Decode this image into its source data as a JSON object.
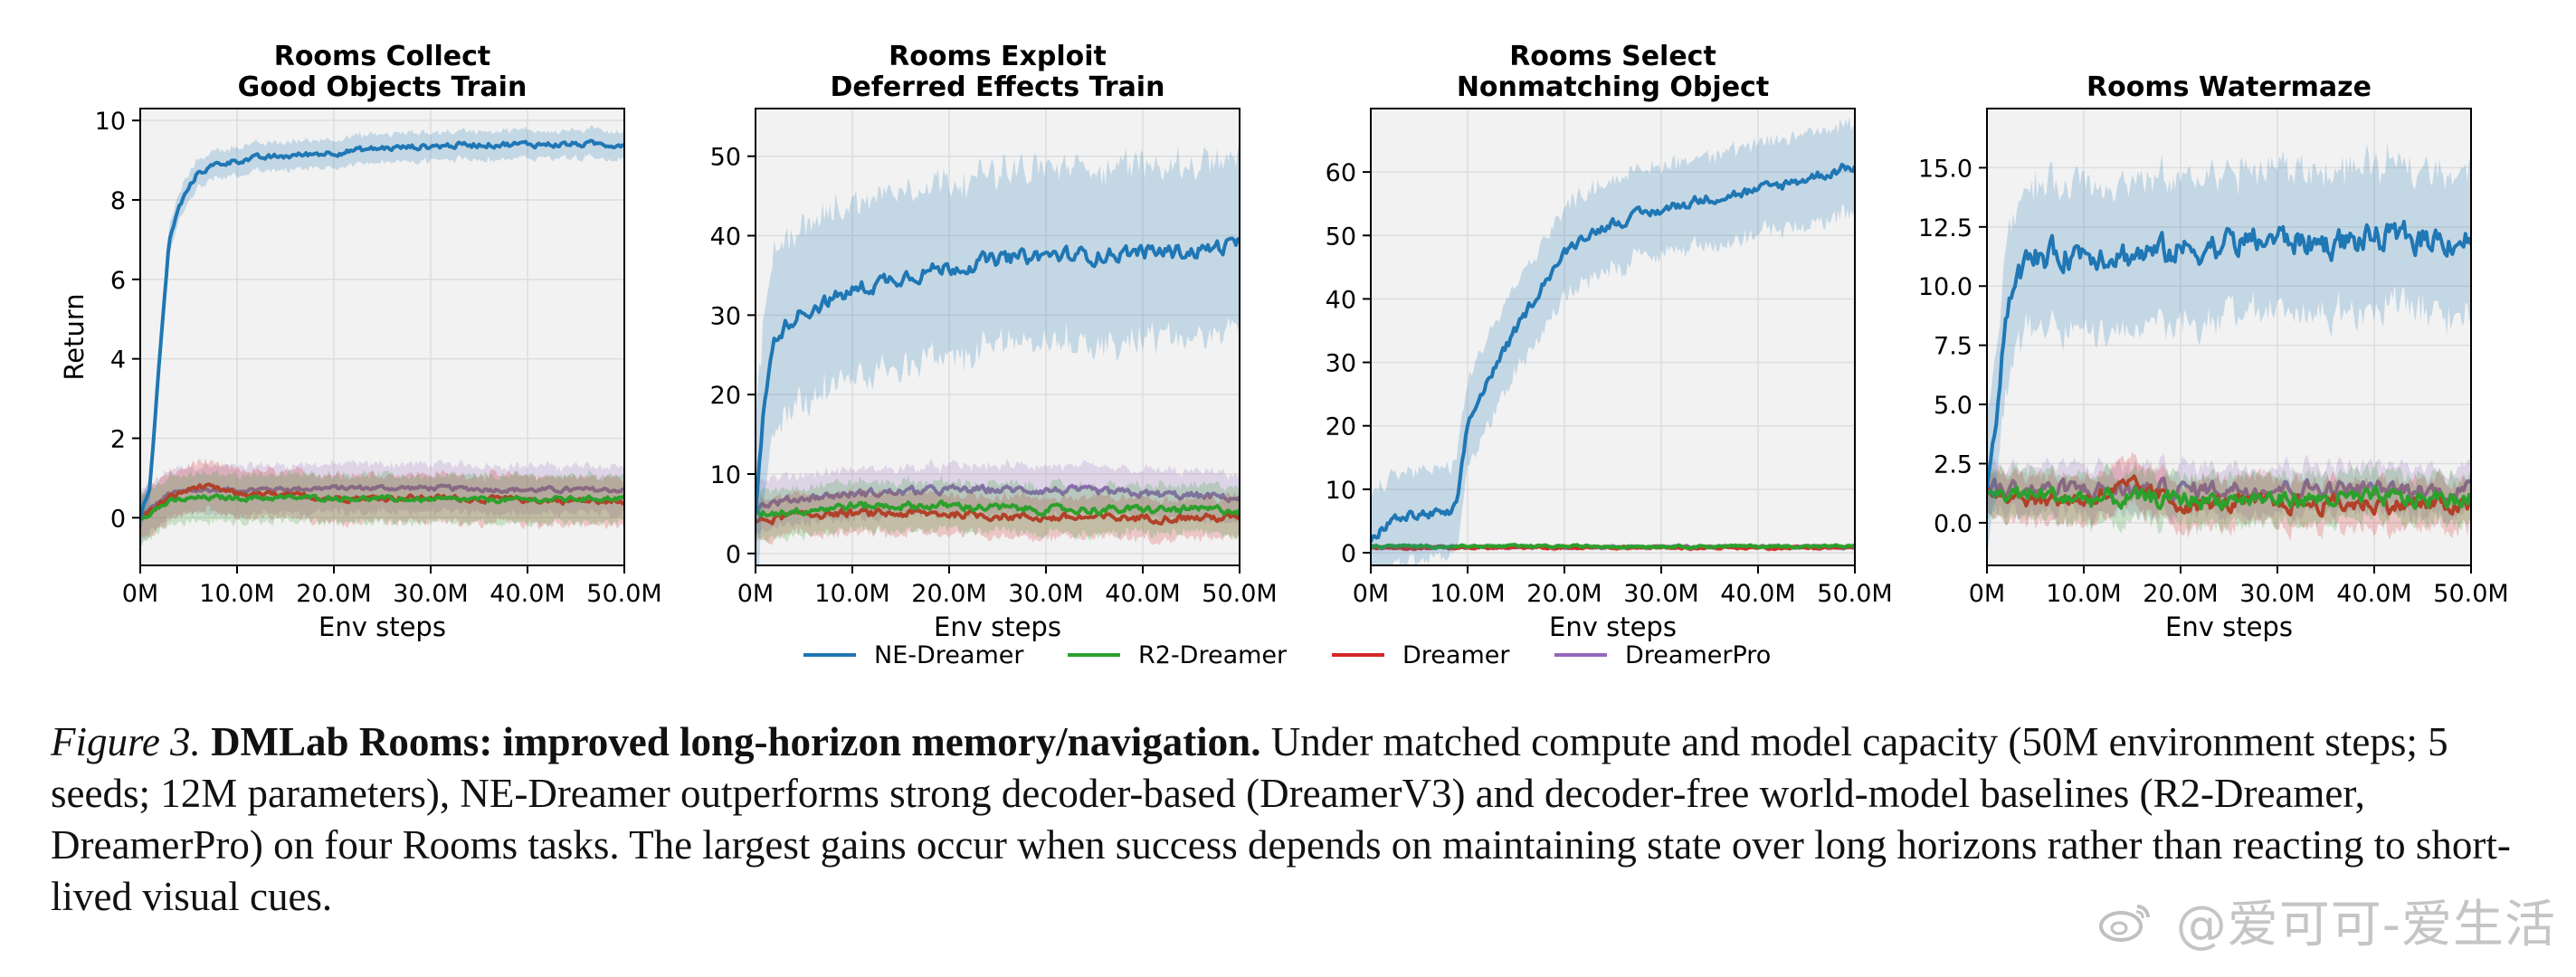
{
  "colors": {
    "NE-Dreamer": "#1f77b4",
    "R2-Dreamer": "#2ca02c",
    "Dreamer": "#d62728",
    "DreamerPro": "#9467bd",
    "panel_bg": "#f2f2f2",
    "grid": "#dddddd"
  },
  "legend": [
    {
      "name": "NE-Dreamer"
    },
    {
      "name": "R2-Dreamer"
    },
    {
      "name": "Dreamer"
    },
    {
      "name": "DreamerPro"
    }
  ],
  "chart_data": [
    {
      "type": "line",
      "title_lines": [
        "Rooms Collect",
        "Good Objects Train"
      ],
      "xlabel": "Env steps",
      "ylabel": "Return",
      "xlim": [
        0,
        50
      ],
      "ylim": [
        -1.2,
        10.3
      ],
      "xticks": [
        0,
        10,
        20,
        30,
        40,
        50
      ],
      "xtick_labels": [
        "0M",
        "10.0M",
        "20.0M",
        "30.0M",
        "40.0M",
        "50.0M"
      ],
      "yticks": [
        0,
        2,
        4,
        6,
        8,
        10
      ],
      "ytick_labels": [
        "0",
        "2",
        "4",
        "6",
        "8",
        "10"
      ],
      "series": [
        {
          "name": "NE-Dreamer",
          "x": [
            0,
            1,
            2,
            3,
            4,
            5,
            6,
            8,
            10,
            15,
            20,
            25,
            30,
            35,
            40,
            45,
            50
          ],
          "y": [
            0,
            0.8,
            4.0,
            7.0,
            7.8,
            8.3,
            8.7,
            8.9,
            9.0,
            9.1,
            9.2,
            9.3,
            9.35,
            9.4,
            9.4,
            9.4,
            9.4
          ],
          "band": 0.35,
          "noise": 0.06
        },
        {
          "name": "R2-Dreamer",
          "x": [
            0,
            3,
            6,
            10,
            20,
            30,
            40,
            50
          ],
          "y": [
            0,
            0.4,
            0.5,
            0.5,
            0.5,
            0.45,
            0.45,
            0.5
          ],
          "band": 0.6,
          "noise": 0.05
        },
        {
          "name": "Dreamer",
          "x": [
            0,
            3,
            6,
            10,
            20,
            30,
            40,
            50
          ],
          "y": [
            0,
            0.5,
            0.8,
            0.6,
            0.5,
            0.5,
            0.45,
            0.4
          ],
          "band": 0.6,
          "noise": 0.06
        },
        {
          "name": "DreamerPro",
          "x": [
            0,
            3,
            6,
            10,
            20,
            30,
            40,
            50
          ],
          "y": [
            0,
            0.6,
            0.7,
            0.7,
            0.75,
            0.75,
            0.7,
            0.7
          ],
          "band": 0.6,
          "noise": 0.05
        }
      ]
    },
    {
      "type": "line",
      "title_lines": [
        "Rooms Exploit",
        "Deferred Effects Train"
      ],
      "xlabel": "Env steps",
      "ylabel": "",
      "xlim": [
        0,
        50
      ],
      "ylim": [
        -1.5,
        56
      ],
      "xticks": [
        0,
        10,
        20,
        30,
        40,
        50
      ],
      "xtick_labels": [
        "0M",
        "10.0M",
        "20.0M",
        "30.0M",
        "40.0M",
        "50.0M"
      ],
      "yticks": [
        0,
        10,
        20,
        30,
        40,
        50
      ],
      "ytick_labels": [
        "0",
        "10",
        "20",
        "30",
        "40",
        "50"
      ],
      "series": [
        {
          "name": "NE-Dreamer",
          "x": [
            0,
            1,
            2,
            4,
            6,
            10,
            15,
            20,
            25,
            30,
            35,
            40,
            45,
            50
          ],
          "y": [
            5,
            20,
            27,
            30,
            31,
            33,
            35,
            36,
            37,
            37.5,
            37.5,
            38,
            38,
            39
          ],
          "band": 11,
          "noise": 0.8
        },
        {
          "name": "R2-Dreamer",
          "x": [
            0,
            5,
            10,
            20,
            30,
            40,
            50
          ],
          "y": [
            5,
            5.5,
            6,
            6,
            5.5,
            5.5,
            5.5
          ],
          "band": 3,
          "noise": 0.4
        },
        {
          "name": "Dreamer",
          "x": [
            0,
            5,
            10,
            20,
            30,
            40,
            50
          ],
          "y": [
            4,
            5,
            5,
            5,
            4.5,
            4.5,
            4.5
          ],
          "band": 2.5,
          "noise": 0.4
        },
        {
          "name": "DreamerPro",
          "x": [
            0,
            5,
            10,
            20,
            30,
            40,
            50
          ],
          "y": [
            6,
            7,
            7.5,
            8,
            8,
            7.5,
            7
          ],
          "band": 3,
          "noise": 0.4
        }
      ]
    },
    {
      "type": "line",
      "title_lines": [
        "Rooms Select",
        "Nonmatching Object"
      ],
      "xlabel": "Env steps",
      "ylabel": "",
      "xlim": [
        0,
        50
      ],
      "ylim": [
        -2,
        70
      ],
      "xticks": [
        0,
        10,
        20,
        30,
        40,
        50
      ],
      "xtick_labels": [
        "0M",
        "10.0M",
        "20.0M",
        "30.0M",
        "40.0M",
        "50.0M"
      ],
      "yticks": [
        0,
        10,
        20,
        30,
        40,
        50,
        60
      ],
      "ytick_labels": [
        "0",
        "10",
        "20",
        "30",
        "40",
        "50",
        "60"
      ],
      "series": [
        {
          "name": "NE-Dreamer",
          "x": [
            0,
            2,
            5,
            8,
            9,
            10,
            12,
            15,
            18,
            20,
            22,
            25,
            30,
            35,
            40,
            45,
            50
          ],
          "y": [
            2,
            5,
            6,
            6,
            8,
            20,
            27,
            35,
            43,
            47,
            50,
            52,
            54,
            56,
            57,
            59,
            61
          ],
          "band": 7,
          "noise": 0.7
        },
        {
          "name": "R2-Dreamer",
          "x": [
            0,
            10,
            20,
            30,
            40,
            50
          ],
          "y": [
            1,
            1,
            1,
            1,
            1,
            1
          ],
          "band": 0.4,
          "noise": 0.15
        },
        {
          "name": "Dreamer",
          "x": [
            0,
            10,
            20,
            30,
            40,
            50
          ],
          "y": [
            0.8,
            0.8,
            0.8,
            0.8,
            0.8,
            0.8
          ],
          "band": 0.4,
          "noise": 0.15
        },
        {
          "name": "DreamerPro",
          "x": [
            0,
            10,
            20,
            30,
            40,
            50
          ],
          "y": [
            0.9,
            0.9,
            0.9,
            0.9,
            0.9,
            0.9
          ],
          "band": 0.4,
          "noise": 0.15
        }
      ]
    },
    {
      "type": "line",
      "title_lines": [
        "",
        "Rooms Watermaze"
      ],
      "xlabel": "Env steps",
      "ylabel": "",
      "xlim": [
        0,
        50
      ],
      "ylim": [
        -1.8,
        17.5
      ],
      "xticks": [
        0,
        10,
        20,
        30,
        40,
        50
      ],
      "xtick_labels": [
        "0M",
        "10.0M",
        "20.0M",
        "30.0M",
        "40.0M",
        "50.0M"
      ],
      "yticks": [
        0,
        2.5,
        5,
        7.5,
        10,
        12.5,
        15
      ],
      "ytick_labels": [
        "0.0",
        "2.5",
        "5.0",
        "7.5",
        "10.0",
        "12.5",
        "15.0"
      ],
      "series": [
        {
          "name": "NE-Dreamer",
          "x": [
            0,
            1,
            2,
            3,
            5,
            10,
            15,
            20,
            25,
            30,
            35,
            40,
            45,
            50
          ],
          "y": [
            1,
            5,
            9,
            10.5,
            11.2,
            11.5,
            11.3,
            11.5,
            11.8,
            12,
            11.8,
            12,
            12,
            12
          ],
          "band": 3,
          "noise": 0.5
        },
        {
          "name": "R2-Dreamer",
          "x": [
            0,
            5,
            10,
            20,
            30,
            40,
            50
          ],
          "y": [
            1.2,
            1.2,
            1.0,
            1.0,
            1.0,
            1.0,
            1.0
          ],
          "band": 1,
          "noise": 0.3
        },
        {
          "name": "Dreamer",
          "x": [
            0,
            5,
            10,
            15,
            20,
            30,
            40,
            50
          ],
          "y": [
            1.5,
            1.0,
            1.0,
            1.5,
            0.8,
            0.8,
            0.8,
            0.7
          ],
          "band": 1,
          "noise": 0.3
        },
        {
          "name": "DreamerPro",
          "x": [
            0,
            5,
            10,
            20,
            30,
            40,
            50
          ],
          "y": [
            1.5,
            1.4,
            1.4,
            1.4,
            1.5,
            1.4,
            1.3
          ],
          "band": 1,
          "noise": 0.3
        }
      ]
    }
  ],
  "caption": {
    "label": "Figure 3.",
    "title": "DMLab Rooms: improved long-horizon memory/navigation.",
    "body": "Under matched compute and model capacity (50M environment steps; 5 seeds; 12M parameters), NE-Dreamer outperforms strong decoder-based (DreamerV3) and decoder-free world-model baselines (R2-Dreamer, DreamerPro) on four Rooms tasks. The largest gains occur when success depends on maintaining state over long horizons rather than reacting to short-lived visual cues."
  },
  "watermark": {
    "text": "@爱可可-爱生活"
  }
}
